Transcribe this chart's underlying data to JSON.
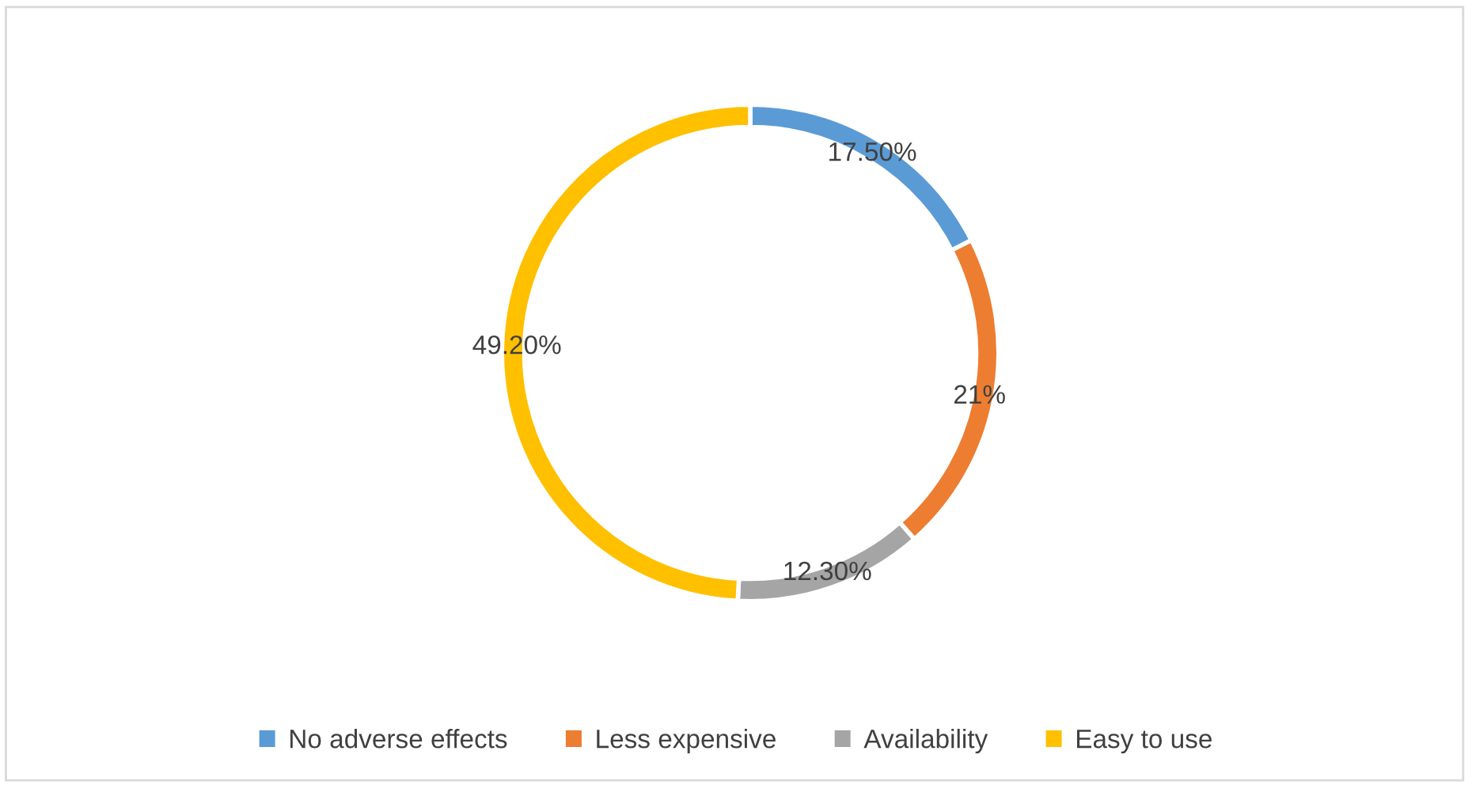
{
  "chart_data": {
    "type": "donut",
    "categories": [
      "No adverse effects",
      "Less expensive",
      "Availability",
      "Easy to use"
    ],
    "values": [
      17.5,
      21,
      12.3,
      49.2
    ],
    "value_labels": [
      "17.50%",
      "21%",
      "12.30%",
      "49.20%"
    ],
    "colors": [
      "#5b9bd5",
      "#ed7d31",
      "#a5a5a5",
      "#ffc000"
    ],
    "legend": "bottom"
  }
}
